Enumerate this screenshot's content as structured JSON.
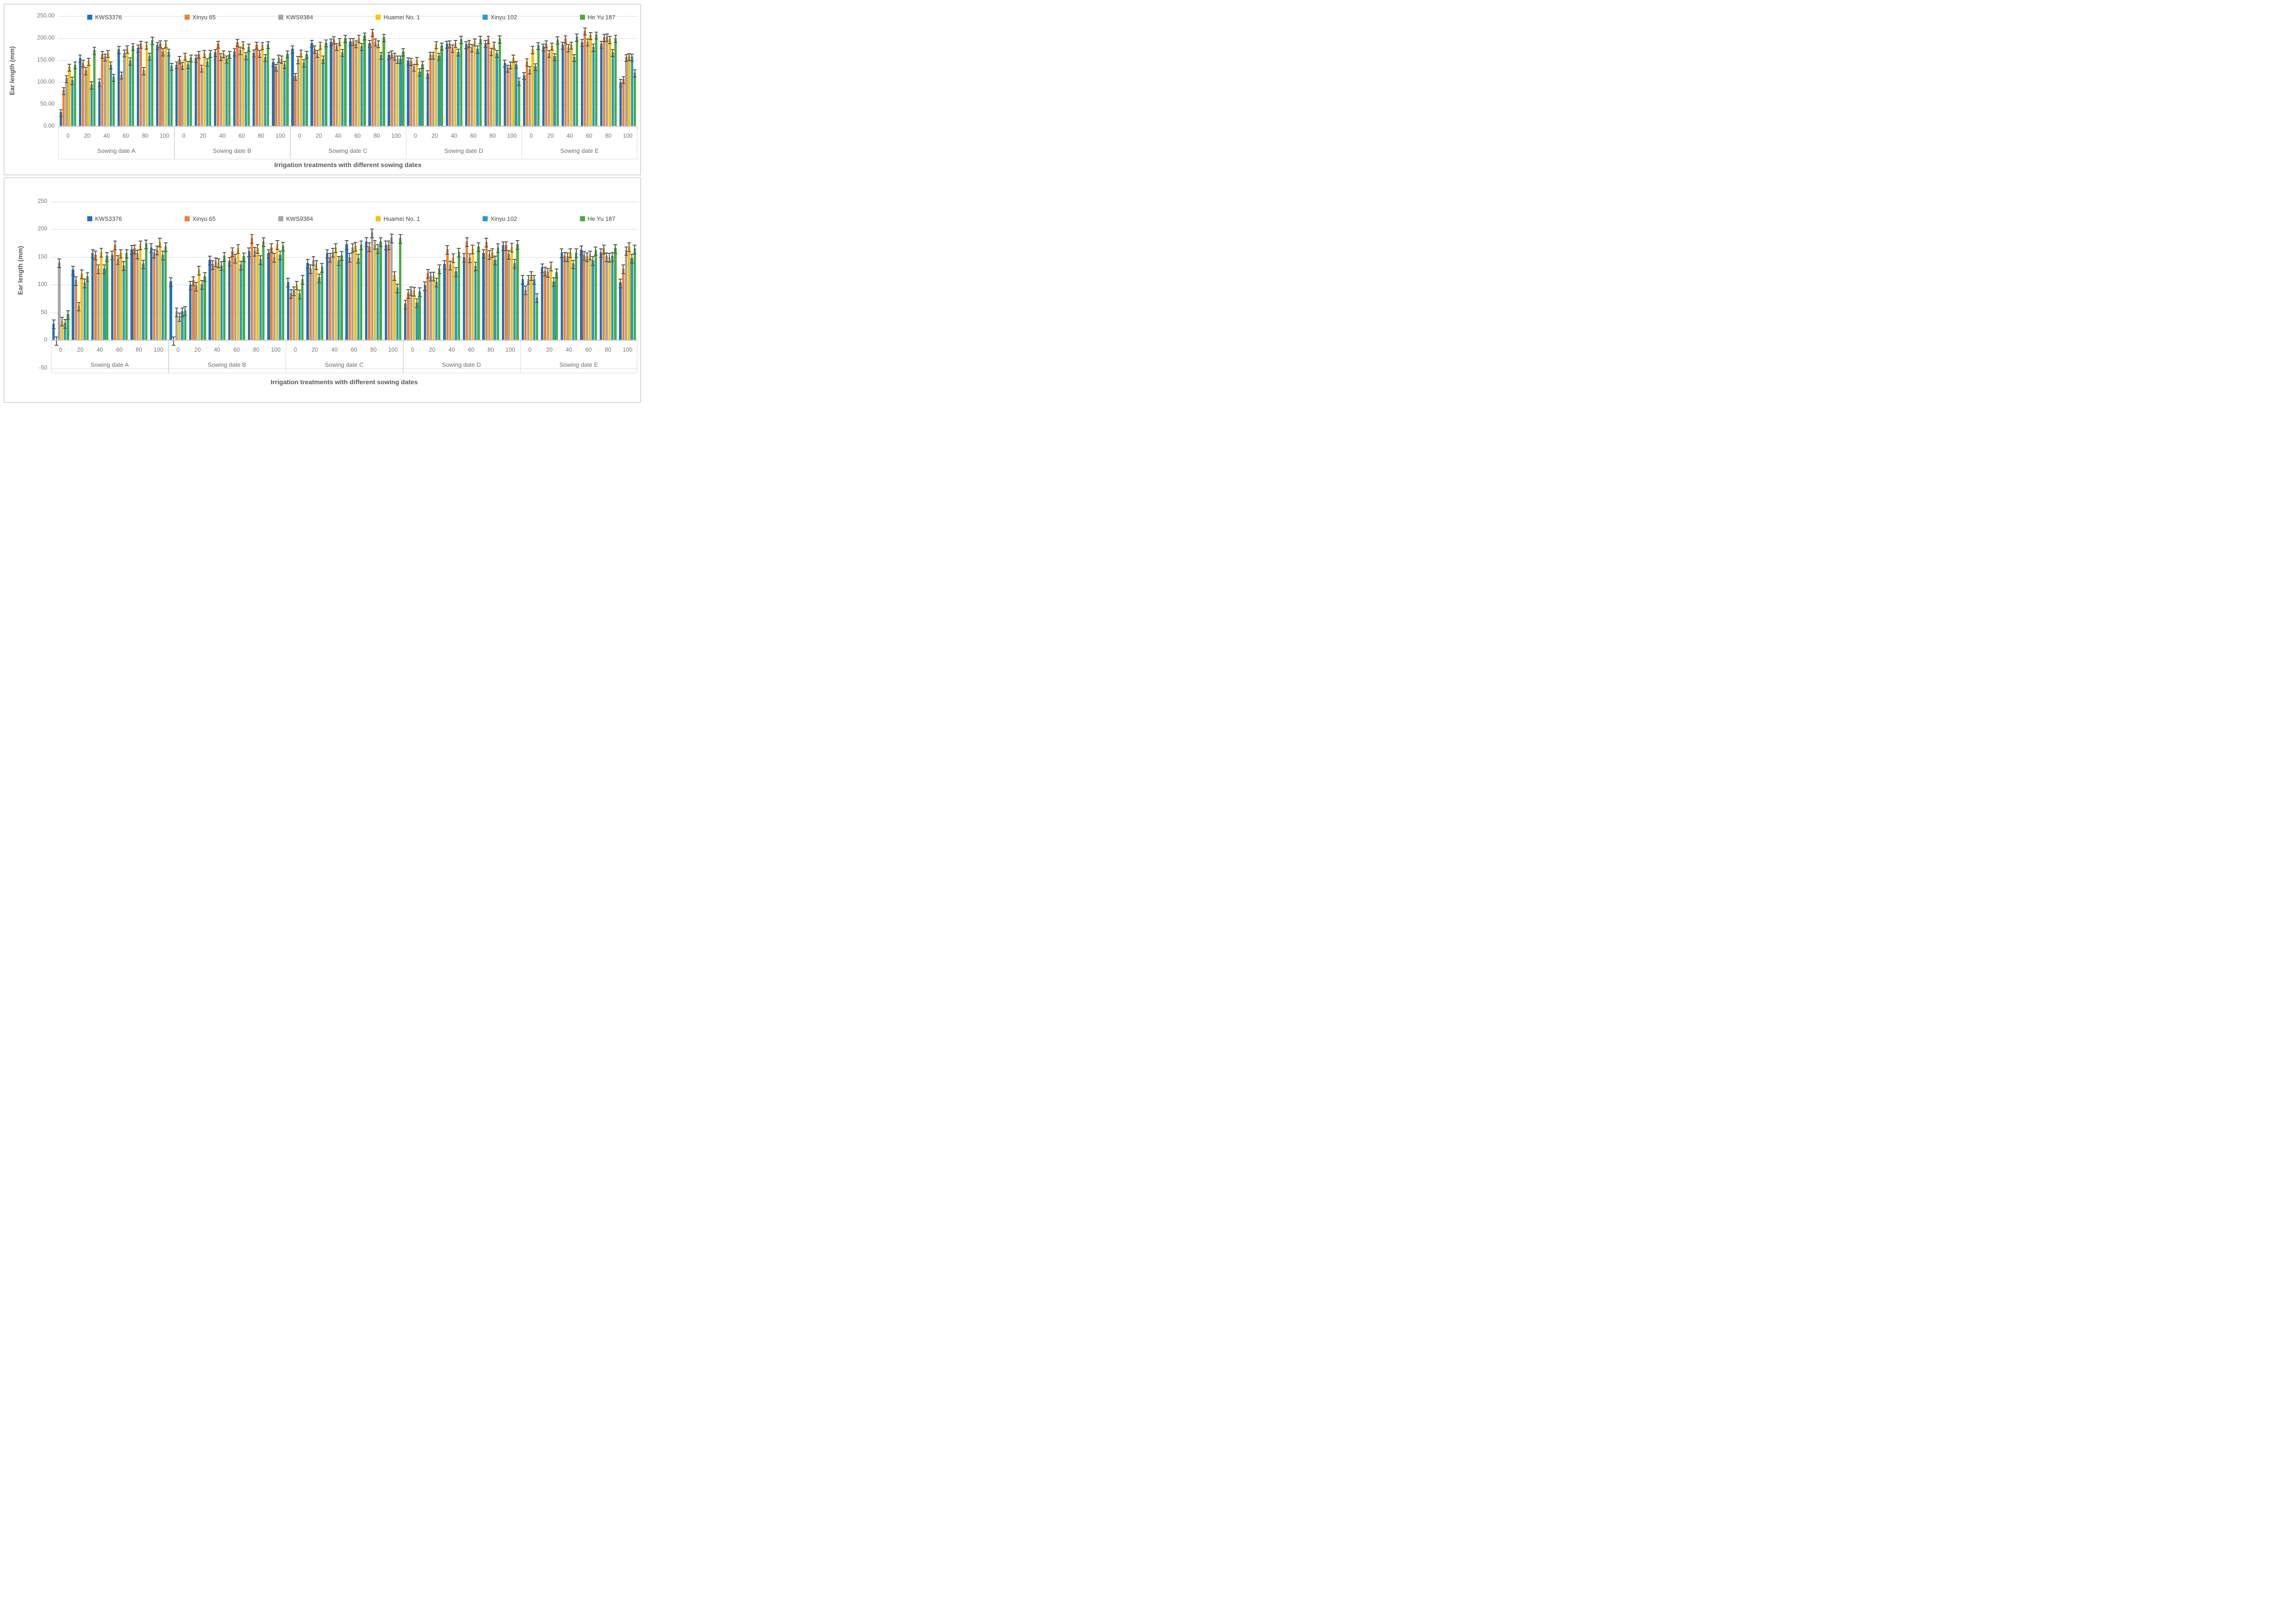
{
  "figure": {
    "background": "#ffffff",
    "panel_border_color": "#d9d9d9",
    "error_bar_color": "#595959",
    "gridline_color": "#dcdcdc"
  },
  "chart_data": [
    {
      "type": "bar",
      "title": "",
      "ylabel": "Ear length (mm)",
      "xlabel": "Irrigation treatments with different sowing dates",
      "ylim": [
        0,
        250
      ],
      "grid": true,
      "legend_position": "top",
      "yticks": [
        {
          "value": 250,
          "label": "250.00"
        },
        {
          "value": 200,
          "label": "200.00"
        },
        {
          "value": 150,
          "label": "150.00"
        },
        {
          "value": 100,
          "label": "100.00"
        },
        {
          "value": 50,
          "label": "50.00"
        },
        {
          "value": 0,
          "label": "0.00"
        }
      ],
      "x_labels": [
        "0",
        "20",
        "40",
        "60",
        "80",
        "100"
      ],
      "group_labels": [
        "Sowing date A",
        "Sowing date B",
        "Sowing date C",
        "Sowing date D",
        "Sowing date E"
      ],
      "error_bar_mm": 7,
      "series": [
        {
          "name": "KWS3376",
          "color": "#1B73C4",
          "values": [
            [
              32,
              155,
              101,
              175,
              178,
              184
            ],
            [
              140,
              155,
              168,
              170,
              167,
              146
            ],
            [
              176,
              189,
              192,
              193,
              189,
              162
            ],
            [
              149,
              120,
              187,
              186,
              189,
              144
            ],
            [
              116,
              181,
              185,
              191,
              187,
              100
            ]
          ]
        },
        {
          "name": "Xinyu 65",
          "color": "#F97E27",
          "values": [
            [
              82,
              144,
              164,
              117,
              187,
              188
            ],
            [
              152,
              164,
              187,
              191,
              185,
              135
            ],
            [
              114,
              176,
              197,
              193,
              214,
              165
            ],
            [
              148,
              162,
              188,
              189,
              198,
              133
            ],
            [
              147,
              188,
              199,
              217,
              202,
              107
            ]
          ]
        },
        {
          "name": "KWS9384",
          "color": "#A6A6A6",
          "values": [
            [
              109,
              127,
              158,
              167,
              127,
              170
            ],
            [
              139,
              133,
              159,
              173,
              166,
              155
            ],
            [
              152,
              166,
              182,
              188,
              192,
              160
            ],
            [
              135,
              162,
              178,
              179,
              171,
              140
            ],
            [
              129,
              166,
              179,
              192,
              203,
              157
            ]
          ]
        },
        {
          "name": "Huamei No. 1",
          "color": "#FFC000",
          "values": [
            [
              135,
              148,
              166,
              176,
              185,
              188
            ],
            [
              160,
              166,
              165,
              186,
              184,
              153
            ],
            [
              167,
              185,
              193,
              200,
              188,
              153
            ],
            [
              150,
              186,
              189,
              192,
              185,
              155
            ],
            [
              175,
              183,
              185,
              207,
              198,
              159
            ]
          ]
        },
        {
          "name": "Xinyu 102",
          "color": "#219CD8",
          "values": [
            [
              105,
              95,
              140,
              149,
              160,
              169
            ],
            [
              141,
              147,
              153,
              161,
              157,
              141
            ],
            [
              145,
              153,
              168,
              182,
              162,
              153
            ],
            [
              124,
              160,
              169,
              176,
              166,
              141
            ],
            [
              136,
              159,
              157,
              180,
              168,
              158
            ]
          ]
        },
        {
          "name": "He Yu 187",
          "color": "#47AE3C",
          "values": [
            [
              140,
              173,
              112,
              182,
              196,
              137
            ],
            [
              156,
              166,
              164,
              180,
              186,
              165
            ],
            [
              164,
              190,
              200,
              206,
              202,
              170
            ],
            [
              141,
              183,
              198,
              198,
              199,
              103
            ],
            [
              184,
              197,
              203,
              208,
              200,
              122
            ]
          ]
        }
      ]
    },
    {
      "type": "bar",
      "title": "",
      "ylabel": "Ear length (mm)",
      "xlabel": "Irrigation treatments with different sowing dates",
      "ylim": [
        -50,
        250
      ],
      "grid": true,
      "legend_position": "top",
      "yticks": [
        {
          "value": 250,
          "label": "250"
        },
        {
          "value": 200,
          "label": "200"
        },
        {
          "value": 150,
          "label": "150"
        },
        {
          "value": 100,
          "label": "100"
        },
        {
          "value": 50,
          "label": "50"
        },
        {
          "value": 0,
          "label": "0"
        },
        {
          "value": -50,
          "label": "-50"
        }
      ],
      "x_labels": [
        "0",
        "20",
        "40",
        "60",
        "80",
        "100"
      ],
      "group_labels": [
        "Sowing date A",
        "Sowing date B",
        "Sowing date C",
        "Sowing date D",
        "Sowing date E"
      ],
      "error_bar_mm": 7,
      "series": [
        {
          "name": "KWS3376",
          "color": "#1B73C4",
          "values": [
            [
              30,
              127,
              157,
              154,
              164,
              167
            ],
            [
              106,
              100,
              145,
              143,
              160,
              157
            ],
            [
              105,
              139,
              157,
              173,
              178,
              172
            ],
            [
              66,
              99,
              137,
              150,
              157,
              171
            ],
            [
              110,
              131,
              158,
              163,
              158,
              104
            ]
          ]
        },
        {
          "name": "Xinyu 65",
          "color": "#F97E27",
          "values": [
            [
              0,
              108,
              154,
              172,
              165,
              157
            ],
            [
              0,
              108,
              137,
              160,
              184,
              167
            ],
            [
              85,
              129,
              150,
              150,
              169,
              172
            ],
            [
              85,
              121,
              164,
              178,
              177,
              171
            ],
            [
              91,
              125,
              152,
              153,
              165,
              129
            ]
          ]
        },
        {
          "name": "KWS9384",
          "color": "#A6A6A6",
          "values": [
            [
              140,
              62,
              129,
              146,
              156,
              163
            ],
            [
              52,
              98,
              142,
              148,
              161,
              150
            ],
            [
              90,
              144,
              159,
              167,
              194,
              185
            ],
            [
              90,
              116,
              136,
              149,
              155,
              155
            ],
            [
              110,
              123,
              151,
              151,
              151,
              162
            ]
          ]
        },
        {
          "name": "Huamei No. 1",
          "color": "#FFC000",
          "values": [
            [
              35,
              120,
              159,
              157,
              172,
              177
            ],
            [
              43,
              127,
              140,
              166,
              166,
              173
            ],
            [
              100,
              137,
              167,
              170,
              173,
              117
            ],
            [
              89,
              116,
              149,
              165,
              158,
              168
            ],
            [
              117,
              134,
              158,
              154,
              150,
              169
            ]
          ]
        },
        {
          "name": "Xinyu 102",
          "color": "#219CD8",
          "values": [
            [
              31,
              104,
              129,
              135,
              138,
              154
            ],
            [
              52,
              101,
              135,
              136,
              146,
              154
            ],
            [
              84,
              113,
              144,
              148,
              166,
              95
            ],
            [
              68,
              105,
              124,
              134,
              145,
              139
            ],
            [
              110,
              106,
              138,
              144,
              152,
              148
            ]
          ]
        },
        {
          "name": "He Yu 187",
          "color": "#47AE3C",
          "values": [
            [
              47,
              115,
              152,
              157,
              174,
              169
            ],
            [
              54,
              115,
              152,
              151,
              178,
              170
            ],
            [
              110,
              132,
              153,
              172,
              178,
              184
            ],
            [
              88,
              129,
              159,
              169,
              167,
              173
            ],
            [
              77,
              122,
              158,
              162,
              166,
              165
            ]
          ]
        }
      ]
    }
  ]
}
